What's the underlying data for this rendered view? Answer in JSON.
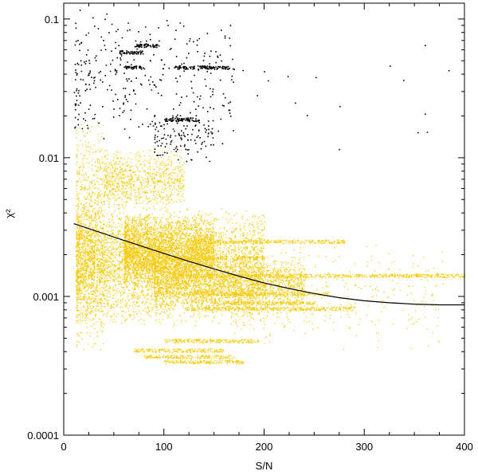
{
  "chart_data": {
    "type": "scatter",
    "xlabel": "S/N",
    "ylabel": "χ²",
    "xlim": [
      0,
      400
    ],
    "ylim": [
      0.0001,
      0.13
    ],
    "yscale": "log",
    "grid": false,
    "x_ticks": [
      {
        "value": 0,
        "label": "0"
      },
      {
        "value": 100,
        "label": "100"
      },
      {
        "value": 200,
        "label": "200"
      },
      {
        "value": 300,
        "label": "300"
      },
      {
        "value": 400,
        "label": "400"
      }
    ],
    "y_ticks": [
      {
        "value": 0.0001,
        "label": "0.0001"
      },
      {
        "value": 0.001,
        "label": "0.001"
      },
      {
        "value": 0.01,
        "label": "0.01"
      },
      {
        "value": 0.1,
        "label": "0.1"
      }
    ],
    "colors": {
      "accepted": "#f5cc12",
      "rejected": "#000000",
      "fit": "#000000"
    },
    "fit_curve": {
      "x": [
        10,
        30,
        50,
        75,
        100,
        125,
        150,
        175,
        200,
        225,
        250,
        275,
        300,
        325,
        350,
        375,
        400
      ],
      "y": [
        0.00335,
        0.003,
        0.00268,
        0.00234,
        0.00204,
        0.00179,
        0.00158,
        0.0014,
        0.00125,
        0.00114,
        0.00105,
        0.00098,
        0.00093,
        0.0009,
        0.00088,
        0.00087,
        0.00087
      ]
    },
    "series": [
      {
        "color": "#f5cc12",
        "clusters": [
          {
            "x": [
              12,
              200
            ],
            "y": [
              0.0006,
              0.0045
            ],
            "n": 4200
          },
          {
            "x": [
              60,
              150
            ],
            "y": [
              0.0012,
              0.004
            ],
            "n": 3000
          },
          {
            "x": [
              12,
              40
            ],
            "y": [
              0.0004,
              0.02
            ],
            "n": 900
          },
          {
            "x": [
              90,
              240
            ],
            "y": [
              0.0008,
              0.002
            ],
            "n": 2000
          },
          {
            "x": [
              40,
              120
            ],
            "y": [
              0.004,
              0.012
            ],
            "n": 800
          },
          {
            "x": [
              170,
              380
            ],
            "y": [
              0.0004,
              0.0025
            ],
            "n": 350
          }
        ],
        "streaks": [
          {
            "x": [
              110,
              400
            ],
            "y": 0.00142
          },
          {
            "x": [
              120,
              265
            ],
            "y": 0.00105
          },
          {
            "x": [
              120,
              290
            ],
            "y": 0.00082
          },
          {
            "x": [
              130,
              280
            ],
            "y": 0.0025
          },
          {
            "x": [
              70,
              160
            ],
            "y": 0.00041
          },
          {
            "x": [
              100,
              195
            ],
            "y": 0.00048
          },
          {
            "x": [
              80,
              170
            ],
            "y": 0.00037
          },
          {
            "x": [
              100,
              180
            ],
            "y": 0.00034
          },
          {
            "x": [
              150,
              250
            ],
            "y": 0.0009
          },
          {
            "x": [
              90,
              200
            ],
            "y": 0.0019
          }
        ]
      },
      {
        "color": "#000000",
        "clusters": [
          {
            "x": [
              10,
              170
            ],
            "y": [
              0.012,
              0.12
            ],
            "n": 320
          },
          {
            "x": [
              90,
              150
            ],
            "y": [
              0.009,
              0.022
            ],
            "n": 120
          },
          {
            "x": [
              150,
              390
            ],
            "y": [
              0.008,
              0.08
            ],
            "n": 18
          }
        ],
        "streaks": [
          {
            "x": [
              55,
              78
            ],
            "y": 0.058
          },
          {
            "x": [
              60,
              80
            ],
            "y": 0.045
          },
          {
            "x": [
              110,
              130
            ],
            "y": 0.045
          },
          {
            "x": [
              135,
              165
            ],
            "y": 0.045
          },
          {
            "x": [
              70,
              95
            ],
            "y": 0.065
          },
          {
            "x": [
              100,
              135
            ],
            "y": 0.019
          }
        ]
      }
    ]
  }
}
